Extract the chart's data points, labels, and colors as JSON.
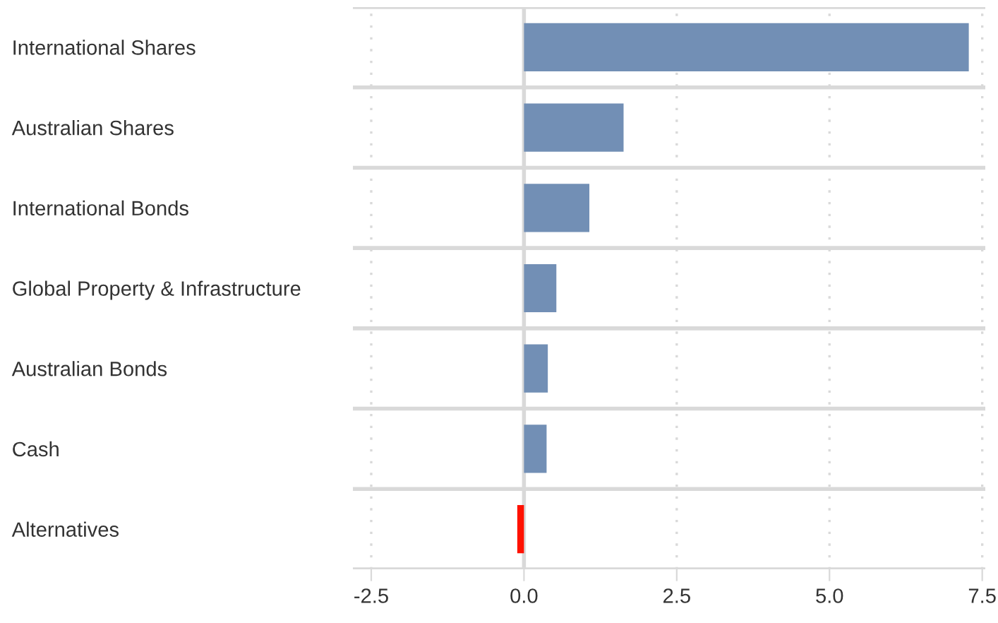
{
  "chart_data": {
    "type": "bar",
    "orientation": "horizontal",
    "categories": [
      "International Shares",
      "Australian Shares",
      "International Bonds",
      "Global Property & Infrastructure",
      "Australian Bonds",
      "Cash",
      "Alternatives"
    ],
    "values": [
      7.28,
      1.63,
      1.07,
      0.53,
      0.39,
      0.37,
      -0.11
    ],
    "colors": [
      "#728fb5",
      "#728fb5",
      "#728fb5",
      "#728fb5",
      "#728fb5",
      "#728fb5",
      "#ff1100"
    ],
    "xlim": [
      -2.8,
      7.55
    ],
    "xticks": [
      -2.5,
      {
        "value": 0,
        "label": "0.0"
      },
      2.5,
      {
        "value": 5,
        "label": "5.0"
      },
      7.5
    ],
    "grid": true
  }
}
